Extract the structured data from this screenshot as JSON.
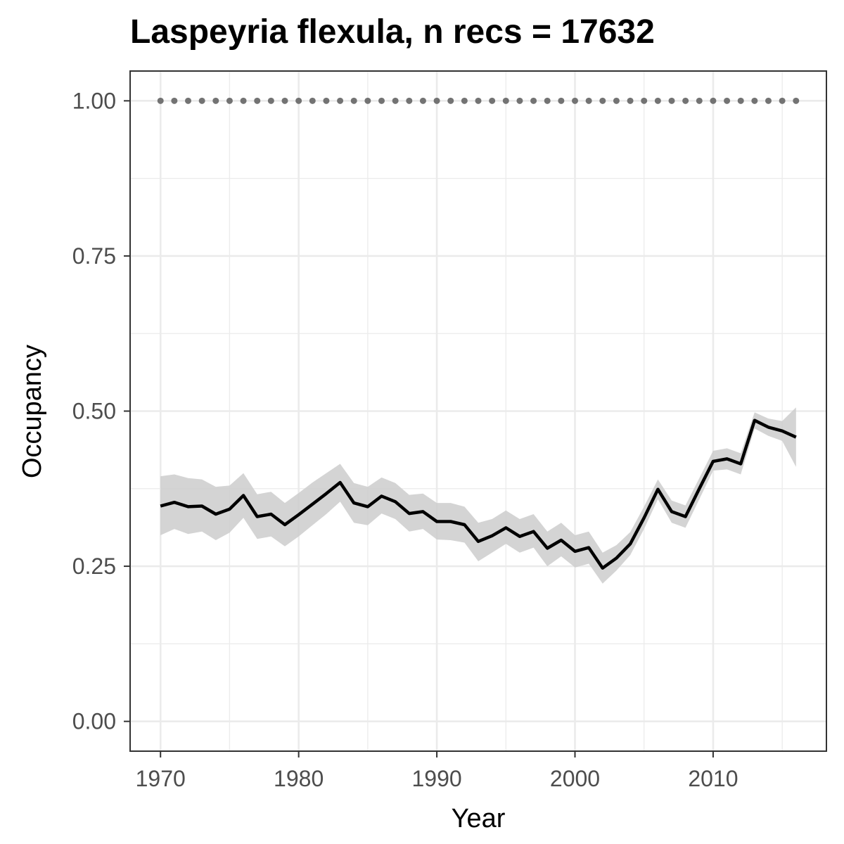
{
  "chart_data": {
    "type": "line",
    "title": "Laspeyria flexula, n recs = 17632",
    "xlabel": "Year",
    "ylabel": "Occupancy",
    "xlim": [
      1967.8,
      2018.2
    ],
    "ylim": [
      -0.048,
      1.048
    ],
    "xticks": [
      1970,
      1980,
      1990,
      2000,
      2010
    ],
    "xtick_labels": [
      "1970",
      "1980",
      "1990",
      "2000",
      "2010"
    ],
    "yticks": [
      0,
      0.25,
      0.5,
      0.75,
      1.0
    ],
    "ytick_labels": [
      "0.00",
      "0.25",
      "0.50",
      "0.75",
      "1.00"
    ],
    "grid": true,
    "x": [
      1970,
      1971,
      1972,
      1973,
      1974,
      1975,
      1976,
      1977,
      1978,
      1979,
      1980,
      1981,
      1982,
      1983,
      1984,
      1985,
      1986,
      1987,
      1988,
      1989,
      1990,
      1991,
      1992,
      1993,
      1994,
      1995,
      1996,
      1997,
      1998,
      1999,
      2000,
      2001,
      2002,
      2003,
      2004,
      2005,
      2006,
      2007,
      2008,
      2009,
      2010,
      2011,
      2012,
      2013,
      2014,
      2015,
      2016
    ],
    "series": [
      {
        "type": "line",
        "color": "#000000",
        "values": [
          0.347,
          0.353,
          0.346,
          0.347,
          0.334,
          0.342,
          0.364,
          0.33,
          0.334,
          0.317,
          0.333,
          0.35,
          0.367,
          0.385,
          0.352,
          0.346,
          0.363,
          0.354,
          0.335,
          0.338,
          0.322,
          0.322,
          0.317,
          0.29,
          0.299,
          0.312,
          0.298,
          0.306,
          0.279,
          0.292,
          0.274,
          0.28,
          0.247,
          0.263,
          0.286,
          0.328,
          0.374,
          0.338,
          0.33,
          0.375,
          0.419,
          0.423,
          0.415,
          0.485,
          0.474,
          0.468,
          0.458
        ]
      },
      {
        "type": "band",
        "color": "#cccccc",
        "lower": [
          0.3,
          0.31,
          0.302,
          0.306,
          0.292,
          0.304,
          0.328,
          0.294,
          0.298,
          0.282,
          0.298,
          0.316,
          0.334,
          0.354,
          0.32,
          0.316,
          0.335,
          0.326,
          0.306,
          0.31,
          0.293,
          0.292,
          0.288,
          0.258,
          0.272,
          0.286,
          0.272,
          0.28,
          0.25,
          0.266,
          0.248,
          0.254,
          0.222,
          0.243,
          0.268,
          0.31,
          0.358,
          0.32,
          0.312,
          0.358,
          0.404,
          0.406,
          0.398,
          0.472,
          0.46,
          0.452,
          0.41
        ],
        "upper": [
          0.395,
          0.398,
          0.392,
          0.39,
          0.378,
          0.38,
          0.4,
          0.366,
          0.37,
          0.352,
          0.368,
          0.385,
          0.4,
          0.415,
          0.384,
          0.378,
          0.393,
          0.384,
          0.365,
          0.367,
          0.352,
          0.352,
          0.346,
          0.32,
          0.326,
          0.34,
          0.326,
          0.334,
          0.306,
          0.32,
          0.3,
          0.306,
          0.272,
          0.284,
          0.305,
          0.346,
          0.39,
          0.356,
          0.348,
          0.392,
          0.436,
          0.44,
          0.432,
          0.498,
          0.488,
          0.484,
          0.506
        ]
      },
      {
        "type": "points",
        "color": "#737373",
        "values": [
          1,
          1,
          1,
          1,
          1,
          1,
          1,
          1,
          1,
          1,
          1,
          1,
          1,
          1,
          1,
          1,
          1,
          1,
          1,
          1,
          1,
          1,
          1,
          1,
          1,
          1,
          1,
          1,
          1,
          1,
          1,
          1,
          1,
          1,
          1,
          1,
          1,
          1,
          1,
          1,
          1,
          1,
          1,
          1,
          1,
          1,
          1
        ]
      }
    ]
  }
}
